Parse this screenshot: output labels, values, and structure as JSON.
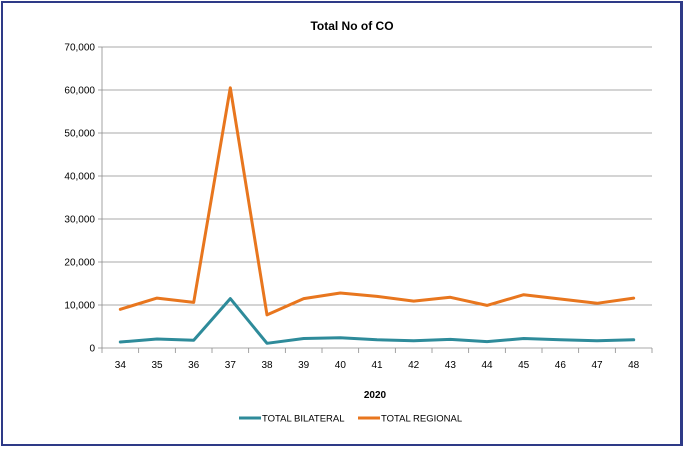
{
  "chart_data": {
    "type": "line",
    "title": "Total No of CO",
    "xlabel": "2020",
    "ylabel": "",
    "categories": [
      "34",
      "35",
      "36",
      "37",
      "38",
      "39",
      "40",
      "41",
      "42",
      "43",
      "44",
      "45",
      "46",
      "47",
      "48"
    ],
    "ylim": [
      0,
      70000
    ],
    "yticks": [
      "0",
      "10,000",
      "20,000",
      "30,000",
      "40,000",
      "50,000",
      "60,000",
      "70,000"
    ],
    "grid": true,
    "legend_position": "bottom",
    "series": [
      {
        "name": "TOTAL BILATERAL",
        "color": "#2e8b9a",
        "values": [
          1400,
          2100,
          1800,
          11500,
          1100,
          2200,
          2400,
          1900,
          1700,
          2000,
          1500,
          2200,
          1900,
          1700,
          1900
        ]
      },
      {
        "name": "TOTAL REGIONAL",
        "color": "#e8761e",
        "values": [
          9000,
          11600,
          10600,
          60500,
          7700,
          11500,
          12800,
          12000,
          10900,
          11800,
          9900,
          12400,
          11400,
          10400,
          11600
        ]
      }
    ]
  }
}
